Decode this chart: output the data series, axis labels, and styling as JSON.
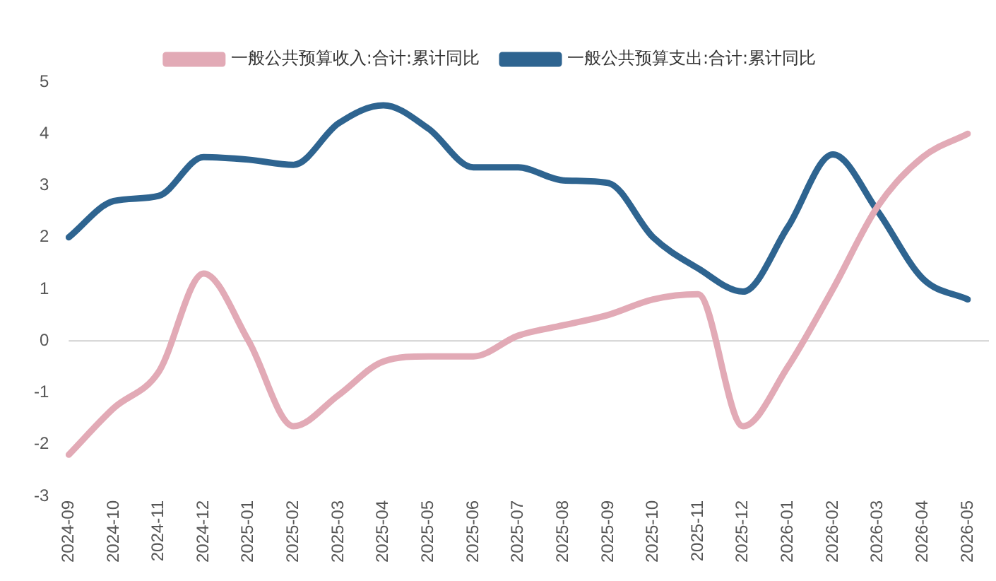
{
  "chart_data": {
    "type": "line",
    "categories": [
      "2024-09",
      "2024-10",
      "2024-11",
      "2024-12",
      "2025-01",
      "2025-02",
      "2025-03",
      "2025-04",
      "2025-05",
      "2025-06",
      "2025-07",
      "2025-08",
      "2025-09",
      "2025-10",
      "2025-11",
      "2025-12",
      "2026-01",
      "2026-02",
      "2026-03",
      "2026-04",
      "2026-05"
    ],
    "series": [
      {
        "name": "一般公共预算收入:合计:累计同比",
        "color": "#e2aab6",
        "values": [
          -2.2,
          -1.3,
          -0.6,
          1.3,
          0.0,
          -1.65,
          -1.05,
          -0.4,
          -0.3,
          -0.3,
          0.1,
          0.3,
          0.5,
          0.8,
          0.9,
          -1.65,
          -0.5,
          1.0,
          2.6,
          3.55,
          4.0
        ]
      },
      {
        "name": "一般公共预算支出:合计:累计同比",
        "color": "#2e6490",
        "values": [
          2.0,
          2.7,
          2.8,
          3.55,
          3.5,
          3.4,
          4.2,
          4.55,
          4.1,
          3.35,
          3.35,
          3.1,
          3.05,
          2.0,
          1.4,
          0.95,
          2.2,
          3.6,
          2.5,
          1.2,
          0.8
        ]
      }
    ],
    "ylim": [
      -3,
      5
    ],
    "yticks": [
      -3,
      -2,
      -1,
      0,
      1,
      2,
      3,
      4,
      5
    ],
    "ref_lines": [
      {
        "axis": "y",
        "value": 0,
        "color": "#d0d0d0"
      }
    ],
    "grid": false,
    "legend": "top",
    "marker": "none",
    "line_style": "solid"
  }
}
